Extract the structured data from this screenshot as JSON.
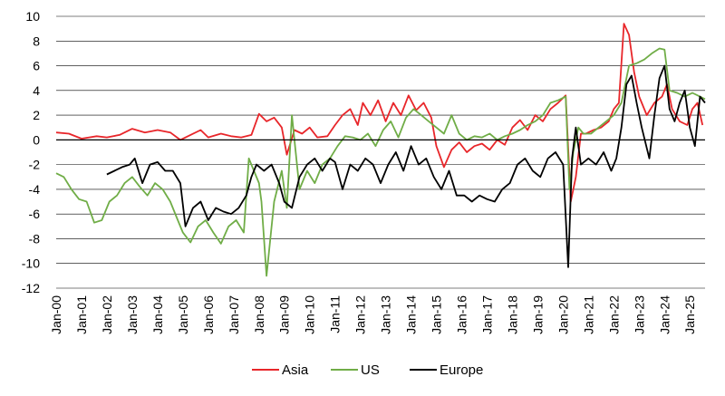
{
  "chart_data": {
    "type": "line",
    "title": "",
    "xlabel": "",
    "ylabel": "",
    "ylim": [
      -12,
      10
    ],
    "yticks": [
      10,
      8,
      6,
      4,
      2,
      0,
      -2,
      -4,
      -6,
      -8,
      -10,
      -12
    ],
    "grid": true,
    "legend_position": "bottom",
    "x_range": [
      2000.0,
      2025.6
    ],
    "x_tick_labels": [
      "Jan-00",
      "Jan-01",
      "Jan-02",
      "Jan-03",
      "Jan-04",
      "Jan-05",
      "Jan-06",
      "Jan-07",
      "Jan-08",
      "Jan-09",
      "Jan-10",
      "Jan-11",
      "Jan-12",
      "Jan-13",
      "Jan-14",
      "Jan-15",
      "Jan-16",
      "Jan-17",
      "Jan-18",
      "Jan-19",
      "Jan-20",
      "Jan-21",
      "Jan-22",
      "Jan-23",
      "Jan-24",
      "Jan-25"
    ],
    "series": [
      {
        "name": "Asia",
        "color": "#e8262a",
        "x": [
          2000.0,
          2000.5,
          2001.0,
          2001.3,
          2001.6,
          2002.0,
          2002.5,
          2003.0,
          2003.5,
          2004.0,
          2004.5,
          2004.9,
          2005.3,
          2005.7,
          2006.0,
          2006.5,
          2006.9,
          2007.3,
          2007.7,
          2008.0,
          2008.3,
          2008.6,
          2008.9,
          2009.1,
          2009.4,
          2009.7,
          2010.0,
          2010.3,
          2010.7,
          2011.0,
          2011.3,
          2011.6,
          2011.9,
          2012.1,
          2012.4,
          2012.7,
          2013.0,
          2013.3,
          2013.6,
          2013.9,
          2014.2,
          2014.5,
          2014.8,
          2015.0,
          2015.3,
          2015.6,
          2015.9,
          2016.2,
          2016.5,
          2016.8,
          2017.1,
          2017.4,
          2017.7,
          2018.0,
          2018.3,
          2018.6,
          2018.9,
          2019.2,
          2019.5,
          2019.8,
          2020.1,
          2020.3,
          2020.5,
          2020.7,
          2020.9,
          2021.2,
          2021.5,
          2021.8,
          2022.0,
          2022.2,
          2022.4,
          2022.6,
          2022.8,
          2023.0,
          2023.3,
          2023.6,
          2023.9,
          2024.1,
          2024.3,
          2024.6,
          2024.9,
          2025.1,
          2025.3,
          2025.5
        ],
        "values": [
          0.6,
          0.5,
          0.1,
          0.2,
          0.3,
          0.2,
          0.4,
          0.9,
          0.6,
          0.8,
          0.6,
          0.0,
          0.4,
          0.8,
          0.2,
          0.5,
          0.3,
          0.2,
          0.4,
          2.1,
          1.5,
          1.8,
          1.0,
          -1.2,
          0.8,
          0.5,
          1.0,
          0.2,
          0.3,
          1.2,
          2.0,
          2.5,
          1.2,
          3.0,
          2.0,
          3.2,
          1.5,
          3.0,
          2.0,
          3.6,
          2.4,
          3.0,
          1.8,
          -0.5,
          -2.2,
          -0.8,
          -0.2,
          -1.0,
          -0.5,
          -0.3,
          -0.8,
          0.0,
          -0.4,
          1.0,
          1.6,
          0.8,
          2.0,
          1.5,
          2.5,
          3.0,
          3.6,
          -5.0,
          -3.0,
          0.5,
          0.5,
          0.8,
          1.0,
          1.5,
          2.5,
          3.0,
          9.4,
          8.5,
          5.5,
          3.5,
          2.0,
          3.0,
          3.5,
          4.5,
          2.5,
          1.5,
          1.2,
          2.5,
          3.0,
          1.2
        ]
      },
      {
        "name": "US",
        "color": "#70ad47",
        "x": [
          2000.0,
          2000.3,
          2000.6,
          2000.9,
          2001.2,
          2001.5,
          2001.8,
          2002.1,
          2002.4,
          2002.7,
          2003.0,
          2003.3,
          2003.6,
          2003.9,
          2004.2,
          2004.5,
          2004.8,
          2005.0,
          2005.3,
          2005.6,
          2005.9,
          2006.2,
          2006.5,
          2006.8,
          2007.1,
          2007.4,
          2007.6,
          2007.8,
          2008.0,
          2008.1,
          2008.3,
          2008.6,
          2008.9,
          2009.1,
          2009.3,
          2009.6,
          2009.9,
          2010.2,
          2010.5,
          2010.8,
          2011.1,
          2011.4,
          2011.7,
          2012.0,
          2012.3,
          2012.6,
          2012.9,
          2013.2,
          2013.5,
          2013.8,
          2014.1,
          2014.4,
          2014.7,
          2015.0,
          2015.3,
          2015.6,
          2015.9,
          2016.2,
          2016.5,
          2016.8,
          2017.1,
          2017.4,
          2017.7,
          2018.0,
          2018.3,
          2018.6,
          2018.9,
          2019.2,
          2019.5,
          2019.8,
          2020.1,
          2020.25,
          2020.4,
          2020.6,
          2020.8,
          2021.1,
          2021.4,
          2021.7,
          2022.0,
          2022.3,
          2022.6,
          2022.9,
          2023.2,
          2023.5,
          2023.8,
          2024.0,
          2024.2,
          2024.5,
          2024.8,
          2025.1,
          2025.4,
          2025.6
        ],
        "values": [
          -2.7,
          -3.0,
          -4.0,
          -4.8,
          -5.0,
          -6.7,
          -6.5,
          -5.0,
          -4.5,
          -3.5,
          -3.0,
          -3.8,
          -4.5,
          -3.5,
          -4.0,
          -5.0,
          -6.5,
          -7.5,
          -8.3,
          -7.0,
          -6.5,
          -7.5,
          -8.4,
          -7.0,
          -6.5,
          -7.5,
          -1.5,
          -2.5,
          -3.5,
          -5.0,
          -11.0,
          -5.0,
          -2.5,
          -5.5,
          2.0,
          -4.0,
          -2.5,
          -3.5,
          -2.0,
          -1.5,
          -0.5,
          0.3,
          0.2,
          0.0,
          0.5,
          -0.5,
          0.8,
          1.5,
          0.2,
          1.8,
          2.5,
          2.0,
          1.5,
          1.0,
          0.5,
          2.0,
          0.5,
          0.0,
          0.3,
          0.2,
          0.5,
          0.0,
          0.3,
          0.5,
          0.8,
          1.2,
          1.5,
          2.0,
          3.0,
          3.2,
          3.5,
          -4.0,
          -1.0,
          1.0,
          0.5,
          0.5,
          1.0,
          1.5,
          2.0,
          3.0,
          6.0,
          6.2,
          6.5,
          7.0,
          7.4,
          7.3,
          4.0,
          3.8,
          3.5,
          3.8,
          3.5,
          3.3
        ]
      },
      {
        "name": "Europe",
        "color": "#000000",
        "x": [
          2002.0,
          2002.3,
          2002.6,
          2002.9,
          2003.1,
          2003.4,
          2003.7,
          2004.0,
          2004.3,
          2004.6,
          2004.9,
          2005.1,
          2005.4,
          2005.7,
          2006.0,
          2006.3,
          2006.6,
          2006.9,
          2007.2,
          2007.5,
          2007.7,
          2007.9,
          2008.2,
          2008.5,
          2008.8,
          2009.0,
          2009.3,
          2009.6,
          2009.9,
          2010.2,
          2010.5,
          2010.8,
          2011.0,
          2011.3,
          2011.6,
          2011.9,
          2012.2,
          2012.5,
          2012.8,
          2013.1,
          2013.4,
          2013.7,
          2014.0,
          2014.3,
          2014.6,
          2014.9,
          2015.2,
          2015.5,
          2015.8,
          2016.1,
          2016.4,
          2016.7,
          2017.0,
          2017.3,
          2017.6,
          2017.9,
          2018.2,
          2018.5,
          2018.8,
          2019.1,
          2019.4,
          2019.7,
          2020.0,
          2020.2,
          2020.35,
          2020.5,
          2020.7,
          2021.0,
          2021.3,
          2021.6,
          2021.9,
          2022.1,
          2022.3,
          2022.5,
          2022.7,
          2022.9,
          2023.1,
          2023.4,
          2023.6,
          2023.8,
          2024.0,
          2024.2,
          2024.4,
          2024.6,
          2024.8,
          2025.0,
          2025.2,
          2025.4,
          2025.6
        ],
        "values": [
          -2.8,
          -2.5,
          -2.2,
          -2.0,
          -1.5,
          -3.5,
          -2.0,
          -1.8,
          -2.5,
          -2.5,
          -3.5,
          -7.0,
          -5.5,
          -5.0,
          -6.5,
          -5.5,
          -5.8,
          -6.0,
          -5.5,
          -4.5,
          -3.0,
          -2.0,
          -2.5,
          -2.0,
          -3.5,
          -5.0,
          -5.5,
          -3.0,
          -2.0,
          -1.5,
          -2.5,
          -1.5,
          -1.8,
          -4.0,
          -2.0,
          -2.5,
          -1.5,
          -2.0,
          -3.5,
          -2.0,
          -1.0,
          -2.5,
          -0.5,
          -2.0,
          -1.5,
          -3.0,
          -4.0,
          -2.5,
          -4.5,
          -4.5,
          -5.0,
          -4.5,
          -4.8,
          -5.0,
          -4.0,
          -3.5,
          -2.0,
          -1.5,
          -2.5,
          -3.0,
          -1.5,
          -1.0,
          -2.0,
          -10.3,
          -1.5,
          1.0,
          -2.0,
          -1.5,
          -2.0,
          -1.0,
          -2.5,
          -1.5,
          1.0,
          4.5,
          5.2,
          3.0,
          1.0,
          -1.5,
          2.0,
          5.0,
          6.0,
          2.5,
          1.5,
          3.0,
          4.0,
          1.0,
          -0.5,
          3.5,
          3.0
        ]
      }
    ]
  }
}
